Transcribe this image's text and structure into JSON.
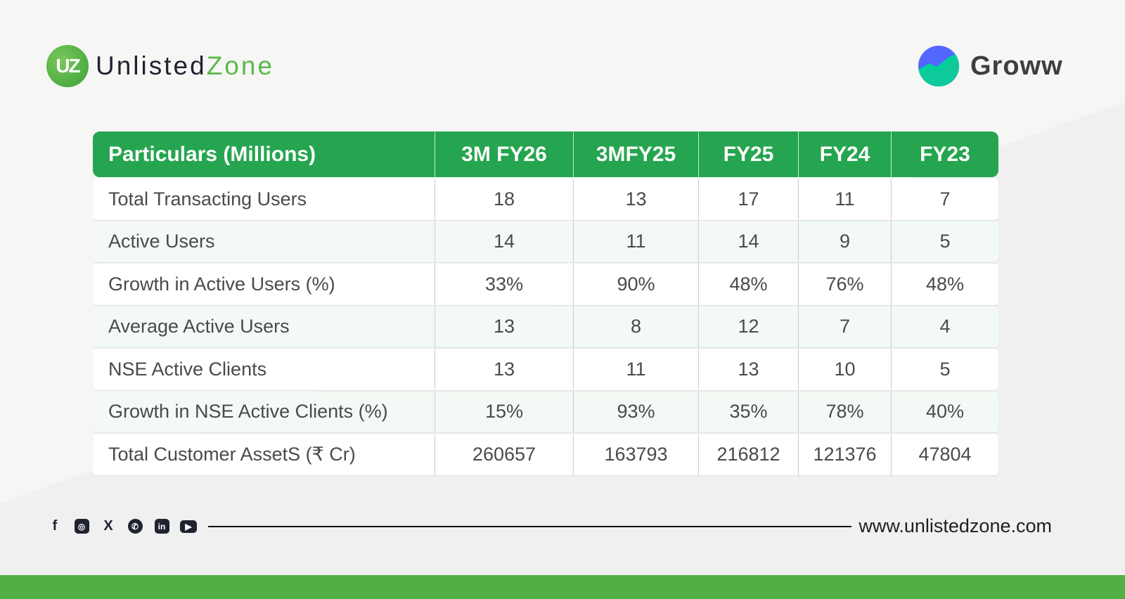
{
  "brand": {
    "uz_mark": "UZ",
    "uz_name_a": "Unlisted",
    "uz_name_b": "Zone",
    "groww": "Groww",
    "colors": {
      "green": "#25a54f",
      "groww_blue": "#5367ff",
      "groww_teal": "#00d09c"
    }
  },
  "table": {
    "headers": [
      "Particulars (Millions)",
      "3M FY26",
      "3MFY25",
      "FY25",
      "FY24",
      "FY23"
    ],
    "rows": [
      [
        "Total Transacting Users",
        "18",
        "13",
        "17",
        "11",
        "7"
      ],
      [
        "Active Users",
        "14",
        "11",
        "14",
        "9",
        "5"
      ],
      [
        "Growth in Active Users (%)",
        "33%",
        "90%",
        "48%",
        "76%",
        "48%"
      ],
      [
        "Average Active Users",
        "13",
        "8",
        "12",
        "7",
        "4"
      ],
      [
        "NSE Active Clients",
        "13",
        "11",
        "13",
        "10",
        "5"
      ],
      [
        "Growth in NSE Active Clients (%)",
        "15%",
        "93%",
        "35%",
        "78%",
        "40%"
      ],
      [
        "Total Customer AssetS (₹ Cr)",
        "260657",
        "163793",
        "216812",
        "121376",
        "47804"
      ]
    ]
  },
  "footer": {
    "social": [
      "facebook",
      "instagram",
      "x",
      "whatsapp",
      "linkedin",
      "youtube"
    ],
    "url": "www.unlistedzone.com"
  }
}
